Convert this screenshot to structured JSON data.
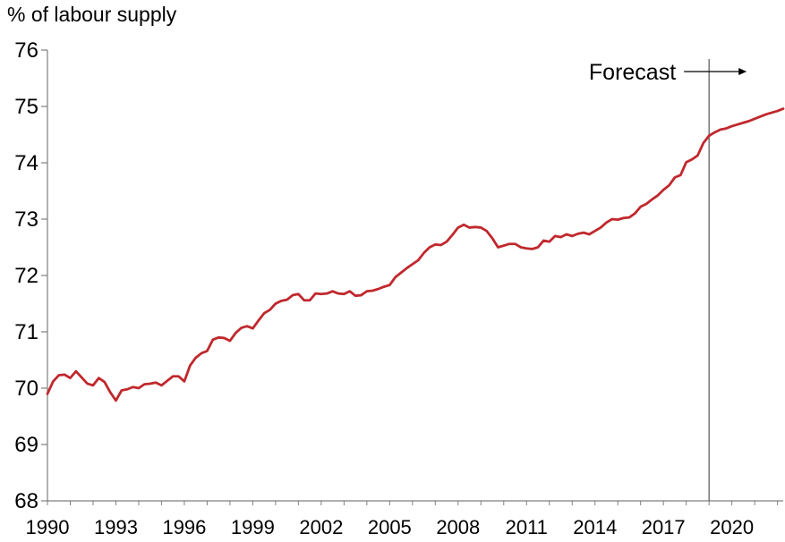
{
  "chart_data": {
    "type": "line",
    "title": "",
    "xlabel": "",
    "ylabel": "% of labour supply",
    "ylim": [
      68,
      76
    ],
    "xlim": [
      1990,
      2022.25
    ],
    "yticks": [
      68,
      69,
      70,
      71,
      72,
      73,
      74,
      75,
      76
    ],
    "xticks": [
      1990,
      1993,
      1996,
      1999,
      2002,
      2005,
      2008,
      2011,
      2014,
      2017,
      2020
    ],
    "xtick_labels": [
      "1990",
      "1993",
      "1996",
      "1999",
      "2002",
      "2005",
      "2008",
      "2011",
      "2014",
      "2017",
      "2020"
    ],
    "ytick_labels": [
      "68",
      "69",
      "70",
      "71",
      "72",
      "73",
      "74",
      "75",
      "76"
    ],
    "grid": false,
    "forecast_line_x": 2019,
    "annotations": [
      {
        "text": "Forecast",
        "x": 2019
      }
    ],
    "colors": {
      "line": "#C0282D",
      "axis": "#7f7f7f",
      "forecast": "#555555"
    },
    "series": [
      {
        "name": "",
        "x": [
          1990.0,
          1990.25,
          1990.5,
          1990.75,
          1991.0,
          1991.25,
          1991.5,
          1991.75,
          1992.0,
          1992.25,
          1992.5,
          1992.75,
          1993.0,
          1993.25,
          1993.5,
          1993.75,
          1994.0,
          1994.25,
          1994.5,
          1994.75,
          1995.0,
          1995.25,
          1995.5,
          1995.75,
          1996.0,
          1996.25,
          1996.5,
          1996.75,
          1997.0,
          1997.25,
          1997.5,
          1997.75,
          1998.0,
          1998.25,
          1998.5,
          1998.75,
          1999.0,
          1999.25,
          1999.5,
          1999.75,
          2000.0,
          2000.25,
          2000.5,
          2000.75,
          2001.0,
          2001.25,
          2001.5,
          2001.75,
          2002.0,
          2002.25,
          2002.5,
          2002.75,
          2003.0,
          2003.25,
          2003.5,
          2003.75,
          2004.0,
          2004.25,
          2004.5,
          2004.75,
          2005.0,
          2005.25,
          2005.5,
          2005.75,
          2006.0,
          2006.25,
          2006.5,
          2006.75,
          2007.0,
          2007.25,
          2007.5,
          2007.75,
          2008.0,
          2008.25,
          2008.5,
          2008.75,
          2009.0,
          2009.25,
          2009.5,
          2009.75,
          2010.0,
          2010.25,
          2010.5,
          2010.75,
          2011.0,
          2011.25,
          2011.5,
          2011.75,
          2012.0,
          2012.25,
          2012.5,
          2012.75,
          2013.0,
          2013.25,
          2013.5,
          2013.75,
          2014.0,
          2014.25,
          2014.5,
          2014.75,
          2015.0,
          2015.25,
          2015.5,
          2015.75,
          2016.0,
          2016.25,
          2016.5,
          2016.75,
          2017.0,
          2017.25,
          2017.5,
          2017.75,
          2018.0,
          2018.25,
          2018.5,
          2018.75,
          2019.0,
          2019.25,
          2019.5,
          2019.75,
          2020.0,
          2020.25,
          2020.5,
          2020.75,
          2021.0,
          2021.25,
          2021.5,
          2021.75,
          2022.0,
          2022.25
        ],
        "values": [
          69.9,
          70.12,
          70.23,
          70.24,
          70.18,
          70.3,
          70.19,
          70.08,
          70.05,
          70.18,
          70.11,
          69.93,
          69.78,
          69.96,
          69.98,
          70.02,
          70.0,
          70.07,
          70.08,
          70.1,
          70.05,
          70.13,
          70.21,
          70.21,
          70.12,
          70.4,
          70.54,
          70.62,
          70.66,
          70.86,
          70.9,
          70.89,
          70.84,
          70.98,
          71.07,
          71.1,
          71.06,
          71.2,
          71.33,
          71.39,
          71.5,
          71.55,
          71.57,
          71.65,
          71.67,
          71.56,
          71.56,
          71.68,
          71.67,
          71.68,
          71.72,
          71.68,
          71.67,
          71.72,
          71.64,
          71.65,
          71.72,
          71.73,
          71.76,
          71.8,
          71.83,
          71.97,
          72.05,
          72.13,
          72.2,
          72.27,
          72.4,
          72.5,
          72.55,
          72.54,
          72.6,
          72.72,
          72.85,
          72.9,
          72.85,
          72.86,
          72.85,
          72.79,
          72.66,
          72.5,
          72.53,
          72.56,
          72.56,
          72.5,
          72.48,
          72.47,
          72.5,
          72.62,
          72.6,
          72.7,
          72.68,
          72.73,
          72.7,
          72.74,
          72.76,
          72.73,
          72.79,
          72.85,
          72.94,
          73.0,
          72.99,
          73.02,
          73.03,
          73.1,
          73.22,
          73.27,
          73.35,
          73.42,
          73.52,
          73.6,
          73.74,
          73.78,
          74.01,
          74.06,
          74.13,
          74.35,
          74.48,
          74.54,
          74.59,
          74.61,
          74.65,
          74.68,
          74.71,
          74.74,
          74.78,
          74.82,
          74.86,
          74.89,
          74.92,
          74.96
        ]
      }
    ]
  }
}
